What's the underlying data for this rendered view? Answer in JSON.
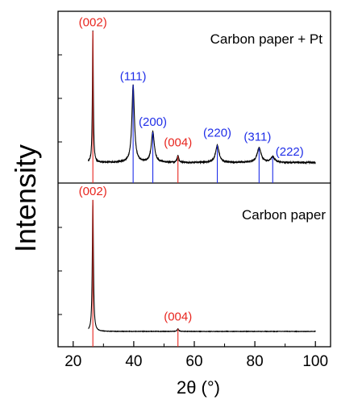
{
  "chart_data": {
    "type": "line",
    "xlabel": "2θ (°)",
    "ylabel": "Intensity",
    "xlim": [
      15,
      105
    ],
    "xticks": [
      20,
      40,
      60,
      80,
      100
    ],
    "tick_labels": [
      "20",
      "40",
      "60",
      "80",
      "100"
    ],
    "grid": false,
    "colors": {
      "trace": "#000000",
      "carbon": "#e8261f",
      "platinum": "#1f2ee8"
    },
    "panels": [
      {
        "label": "Carbon paper + Pt",
        "ylim": [
          0,
          100
        ],
        "baseline": 7,
        "peaks": [
          {
            "label": "(002)",
            "x": 26.5,
            "height": 100,
            "width": 0.18,
            "phase": "carbon"
          },
          {
            "label": "(111)",
            "x": 39.8,
            "height": 59,
            "width": 0.5,
            "phase": "platinum"
          },
          {
            "label": "(200)",
            "x": 46.3,
            "height": 23,
            "width": 0.6,
            "phase": "platinum"
          },
          {
            "label": "(004)",
            "x": 54.6,
            "height": 5,
            "width": 0.3,
            "phase": "carbon"
          },
          {
            "label": "(220)",
            "x": 67.6,
            "height": 13,
            "width": 0.7,
            "phase": "platinum"
          },
          {
            "label": "(311)",
            "x": 81.4,
            "height": 11,
            "width": 0.8,
            "phase": "platinum"
          },
          {
            "label": "(222)",
            "x": 85.9,
            "height": 4,
            "width": 0.8,
            "phase": "platinum"
          }
        ]
      },
      {
        "label": "Carbon paper",
        "ylim": [
          0,
          100
        ],
        "baseline": 0,
        "peaks": [
          {
            "label": "(002)",
            "x": 26.5,
            "height": 100,
            "width": 0.22,
            "phase": "carbon"
          },
          {
            "label": "(004)",
            "x": 54.6,
            "height": 2,
            "width": 0.3,
            "phase": "carbon"
          }
        ]
      }
    ]
  }
}
